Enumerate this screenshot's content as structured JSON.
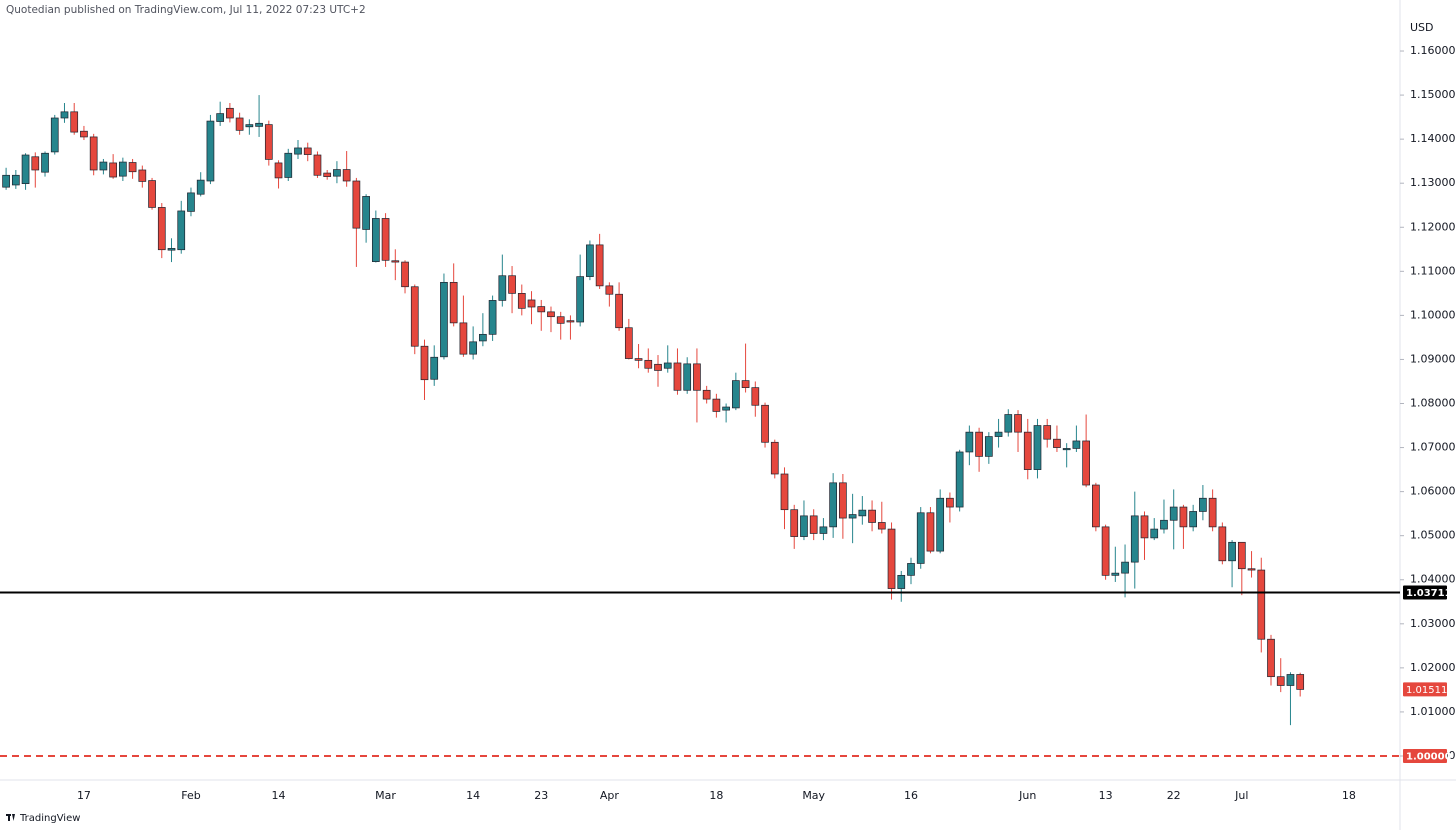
{
  "header": "Quotedian published on TradingView.com, Jul 11, 2022 07:23 UTC+2",
  "footer": "TradingView",
  "chart_data": {
    "type": "candlestick",
    "unit": "USD",
    "up_color": "#26858d",
    "down_color": "#e5473d",
    "grid": false,
    "ylim": [
      0.99455,
      1.17158
    ],
    "yticks": [
      {
        "value": 1.0,
        "label": "1.00000"
      },
      {
        "value": 1.01,
        "label": "1.01000"
      },
      {
        "value": 1.02,
        "label": "1.02000"
      },
      {
        "value": 1.03,
        "label": "1.03000"
      },
      {
        "value": 1.04,
        "label": "1.04000"
      },
      {
        "value": 1.05,
        "label": "1.05000"
      },
      {
        "value": 1.06,
        "label": "1.06000"
      },
      {
        "value": 1.07,
        "label": "1.07000"
      },
      {
        "value": 1.08,
        "label": "1.08000"
      },
      {
        "value": 1.09,
        "label": "1.09000"
      },
      {
        "value": 1.1,
        "label": "1.10000"
      },
      {
        "value": 1.11,
        "label": "1.11000"
      },
      {
        "value": 1.12,
        "label": "1.12000"
      },
      {
        "value": 1.13,
        "label": "1.13000"
      },
      {
        "value": 1.14,
        "label": "1.14000"
      },
      {
        "value": 1.15,
        "label": "1.15000"
      },
      {
        "value": 1.16,
        "label": "1.16000"
      }
    ],
    "hlines": [
      {
        "value": 1.03711,
        "color": "#000000",
        "style": "solid"
      },
      {
        "value": 1,
        "label": "1.00000",
        "color": "#e5473d",
        "style": "dashed"
      }
    ],
    "categories": [
      null,
      null,
      null,
      null,
      null,
      null,
      null,
      null,
      "17",
      null,
      null,
      null,
      null,
      null,
      null,
      null,
      null,
      null,
      null,
      "Feb",
      null,
      null,
      null,
      null,
      null,
      null,
      null,
      null,
      "14",
      null,
      null,
      null,
      null,
      null,
      null,
      null,
      null,
      null,
      null,
      "Mar",
      null,
      null,
      null,
      null,
      null,
      null,
      null,
      null,
      "14",
      null,
      null,
      null,
      null,
      null,
      null,
      "23",
      null,
      null,
      null,
      null,
      null,
      null,
      "Apr",
      null,
      null,
      null,
      null,
      null,
      null,
      null,
      null,
      null,
      null,
      "18",
      null,
      null,
      null,
      null,
      null,
      null,
      null,
      null,
      null,
      "May",
      null,
      null,
      null,
      null,
      null,
      null,
      null,
      null,
      null,
      "16",
      null,
      null,
      null,
      null,
      null,
      null,
      null,
      null,
      null,
      null,
      null,
      "Jun",
      null,
      null,
      null,
      null,
      null,
      null,
      null,
      "13",
      null,
      null,
      null,
      null,
      null,
      null,
      "22",
      null,
      null,
      null,
      null,
      null,
      null,
      "Jul",
      null,
      null,
      null,
      null,
      null,
      null,
      null,
      null,
      null,
      null,
      "18"
    ],
    "open": [
      1.1291,
      1.1296,
      1.1299,
      1.136,
      1.1325,
      1.1371,
      1.1448,
      1.1462,
      1.1418,
      1.1405,
      1.133,
      1.1346,
      1.1316,
      1.1347,
      1.133,
      1.1306,
      1.1245,
      1.1148,
      1.1149,
      1.1236,
      1.1275,
      1.1305,
      1.144,
      1.147,
      1.1448,
      1.1428,
      1.1429,
      1.1433,
      1.1346,
      1.1313,
      1.1366,
      1.138,
      1.1364,
      1.1323,
      1.1316,
      1.1331,
      1.1305,
      1.1195,
      1.1122,
      1.122,
      1.1124,
      1.1121,
      1.1065,
      1.093,
      1.0855,
      1.0906,
      1.1075,
      1.0983,
      1.0912,
      1.0942,
      1.0957,
      1.1034,
      1.109,
      1.105,
      1.1035,
      1.102,
      1.1008,
      1.0997,
      1.0988,
      1.0985,
      1.1088,
      1.116,
      1.1067,
      1.1048,
      1.0972,
      1.0902,
      1.0898,
      1.0889,
      1.088,
      1.0892,
      1.083,
      1.089,
      1.083,
      1.081,
      1.0785,
      1.079,
      1.0852,
      1.0836,
      1.0796,
      1.0712,
      1.064,
      1.0559,
      1.0498,
      1.0545,
      1.0505,
      1.052,
      1.062,
      1.054,
      1.0545,
      1.0558,
      1.053,
      1.0515,
      1.038,
      1.041,
      1.0437,
      1.0552,
      1.0465,
      1.0585,
      1.0565,
      1.069,
      1.0735,
      1.068,
      1.0725,
      1.0735,
      1.0775,
      1.0735,
      1.065,
      1.075,
      1.0719,
      1.0695,
      1.0698,
      1.0715,
      1.0615,
      1.052,
      1.041,
      1.0415,
      1.044,
      1.0545,
      1.0495,
      1.0515,
      1.0535,
      1.0565,
      1.052,
      1.0555,
      1.0585,
      1.052,
      1.0443,
      1.0485,
      1.0425,
      1.0422,
      1.0265,
      1.018,
      1.016,
      1.0185,
      null,
      null,
      null,
      null,
      null
    ],
    "high": [
      1.1335,
      1.133,
      1.1368,
      1.137,
      1.1372,
      1.1455,
      1.1482,
      1.1482,
      1.143,
      1.1412,
      1.1355,
      1.1366,
      1.1358,
      1.1355,
      1.134,
      1.1312,
      1.1255,
      1.1175,
      1.126,
      1.129,
      1.1325,
      1.1455,
      1.1485,
      1.1482,
      1.146,
      1.1445,
      1.15,
      1.1442,
      1.1352,
      1.1378,
      1.1398,
      1.1392,
      1.1372,
      1.133,
      1.135,
      1.1373,
      1.1312,
      1.1275,
      1.1238,
      1.1232,
      1.115,
      1.1125,
      1.107,
      1.0945,
      1.0932,
      1.1095,
      1.1118,
      1.1045,
      1.0975,
      1.1005,
      1.1045,
      1.1138,
      1.1112,
      1.107,
      1.1055,
      1.1035,
      1.102,
      1.1008,
      1.1,
      1.1138,
      1.117,
      1.1185,
      1.1075,
      1.1075,
      1.0992,
      1.0935,
      1.0925,
      1.091,
      1.0932,
      1.0925,
      1.0905,
      1.0925,
      1.084,
      1.0822,
      1.08,
      1.087,
      1.0936,
      1.085,
      1.0802,
      1.0718,
      1.0655,
      1.057,
      1.058,
      1.056,
      1.054,
      1.0642,
      1.064,
      1.0595,
      1.059,
      1.058,
      1.0577,
      1.053,
      1.042,
      1.045,
      1.0565,
      1.0565,
      1.0605,
      1.0598,
      1.0695,
      1.075,
      1.0745,
      1.0735,
      1.0765,
      1.0787,
      1.0785,
      1.0765,
      1.0765,
      1.0765,
      1.075,
      1.071,
      1.075,
      1.0775,
      1.062,
      1.0525,
      1.0475,
      1.048,
      1.06,
      1.0555,
      1.054,
      1.0582,
      1.0605,
      1.057,
      1.057,
      1.0615,
      1.0605,
      1.053,
      1.049,
      1.0485,
      1.0465,
      1.045,
      1.0275,
      1.0222,
      1.019,
      1.0189,
      null,
      null,
      null,
      null,
      null
    ],
    "low": [
      1.1285,
      1.1287,
      1.1285,
      1.129,
      1.1315,
      1.1365,
      1.1437,
      1.141,
      1.1398,
      1.1318,
      1.132,
      1.131,
      1.1305,
      1.131,
      1.129,
      1.124,
      1.113,
      1.1121,
      1.114,
      1.1225,
      1.127,
      1.1298,
      1.143,
      1.1438,
      1.141,
      1.141,
      1.1405,
      1.134,
      1.1288,
      1.1305,
      1.1355,
      1.135,
      1.1312,
      1.1308,
      1.13,
      1.1292,
      1.111,
      1.1165,
      1.112,
      1.111,
      1.108,
      1.105,
      1.0912,
      1.0808,
      1.084,
      1.09,
      1.0975,
      1.0906,
      1.09,
      1.093,
      1.0942,
      1.102,
      1.1005,
      1.1,
      1.098,
      1.0965,
      1.0962,
      1.0945,
      1.0945,
      1.0975,
      1.108,
      1.106,
      1.102,
      1.0965,
      1.09,
      1.088,
      1.087,
      1.0838,
      1.087,
      1.082,
      1.0822,
      1.0757,
      1.08,
      1.0768,
      1.0757,
      1.0785,
      1.0825,
      1.077,
      1.07,
      1.063,
      1.0515,
      1.047,
      1.049,
      1.049,
      1.049,
      1.0495,
      1.0493,
      1.0483,
      1.0525,
      1.051,
      1.0505,
      1.0355,
      1.035,
      1.039,
      1.0425,
      1.046,
      1.046,
      1.053,
      1.0555,
      1.066,
      1.0645,
      1.0663,
      1.07,
      1.0725,
      1.069,
      1.0628,
      1.063,
      1.07,
      1.069,
      1.0655,
      1.069,
      1.061,
      1.051,
      1.04,
      1.0395,
      1.036,
      1.038,
      1.0445,
      1.049,
      1.0505,
      1.0469,
      1.047,
      1.051,
      1.0535,
      1.051,
      1.0435,
      1.0383,
      1.0365,
      1.0405,
      1.0235,
      1.016,
      1.0145,
      1.007,
      1.0135,
      null,
      null,
      null,
      null,
      null
    ],
    "close": [
      1.1318,
      1.1318,
      1.1364,
      1.133,
      1.1368,
      1.1448,
      1.1462,
      1.1416,
      1.1405,
      1.133,
      1.1348,
      1.1314,
      1.1348,
      1.1326,
      1.1304,
      1.1245,
      1.1149,
      1.1152,
      1.1237,
      1.1278,
      1.1307,
      1.1441,
      1.1458,
      1.1448,
      1.142,
      1.1433,
      1.1436,
      1.1354,
      1.1312,
      1.1368,
      1.138,
      1.1365,
      1.1318,
      1.1315,
      1.1331,
      1.1305,
      1.1198,
      1.127,
      1.122,
      1.1125,
      1.1121,
      1.1065,
      1.093,
      1.0854,
      1.0905,
      1.1075,
      1.0983,
      1.0912,
      1.094,
      1.0957,
      1.1034,
      1.109,
      1.105,
      1.1016,
      1.1019,
      1.1008,
      1.0997,
      1.0982,
      1.0985,
      1.1088,
      1.116,
      1.1067,
      1.1048,
      1.0972,
      1.0902,
      1.0898,
      1.088,
      1.0875,
      1.0892,
      1.083,
      1.089,
      1.083,
      1.081,
      1.0782,
      1.0792,
      1.0852,
      1.0836,
      1.0796,
      1.0712,
      1.064,
      1.0559,
      1.0498,
      1.0545,
      1.0505,
      1.052,
      1.062,
      1.054,
      1.0548,
      1.0558,
      1.053,
      1.0515,
      1.038,
      1.041,
      1.0437,
      1.0552,
      1.0465,
      1.0585,
      1.0565,
      1.069,
      1.0735,
      1.068,
      1.0725,
      1.0735,
      1.0775,
      1.0735,
      1.065,
      1.075,
      1.0719,
      1.07,
      1.0698,
      1.0715,
      1.0615,
      1.052,
      1.041,
      1.0415,
      1.044,
      1.0545,
      1.0495,
      1.0515,
      1.0535,
      1.0565,
      1.052,
      1.0555,
      1.0585,
      1.052,
      1.0443,
      1.0485,
      1.0425,
      1.0422,
      1.0265,
      1.018,
      1.016,
      1.0185,
      1.01511,
      null,
      null,
      null,
      null,
      null
    ]
  }
}
